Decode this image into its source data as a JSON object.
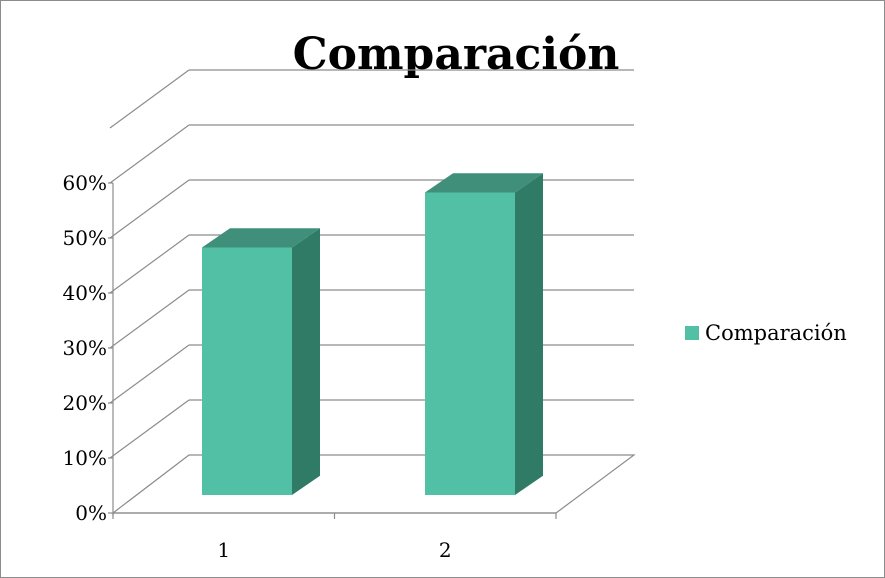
{
  "chart_data": {
    "type": "bar",
    "title": "Comparación",
    "categories": [
      "1",
      "2"
    ],
    "series": [
      {
        "name": "Comparación",
        "values": [
          45,
          55
        ]
      }
    ],
    "ylim": [
      0,
      60
    ],
    "yticks": [
      0,
      10,
      20,
      30,
      40,
      50,
      60
    ],
    "ytick_format": "{v}%",
    "xlabel": "",
    "ylabel": "",
    "grid": true,
    "three_d": true,
    "legend_position": "right",
    "colors": {
      "front": "#52c0a4",
      "side": "#2f7b66",
      "top": "#3f8f7b",
      "grid": "#8c8c8c"
    }
  }
}
